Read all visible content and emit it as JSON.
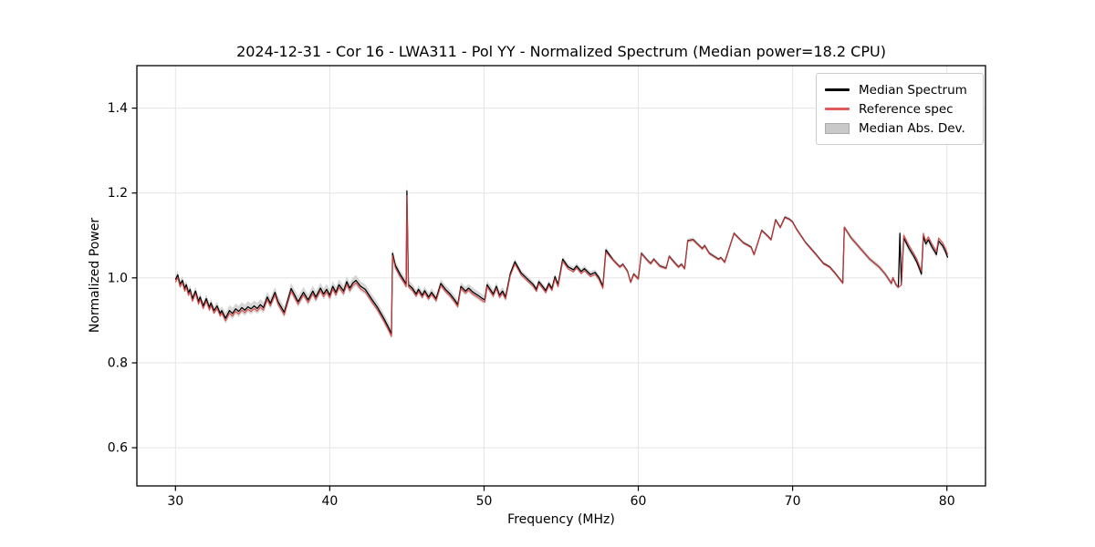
{
  "chart_data": {
    "type": "line",
    "title": "2024-12-31 - Cor 16 - LWA311 - Pol YY - Normalized Spectrum (Median power=18.2 CPU)",
    "xlabel": "Frequency (MHz)",
    "ylabel": "Normalized Power",
    "xlim": [
      27.5,
      82.5
    ],
    "ylim": [
      0.51,
      1.5
    ],
    "xticks": [
      30,
      40,
      50,
      60,
      70,
      80
    ],
    "yticks": [
      0.6,
      0.8,
      1.0,
      1.2,
      1.4
    ],
    "xtick_labels": [
      "30",
      "40",
      "50",
      "60",
      "70",
      "80"
    ],
    "ytick_labels": [
      "0.6",
      "0.8",
      "1.0",
      "1.2",
      "1.4"
    ],
    "grid": true,
    "grid_color": "#e5e5e5",
    "legend_position": "upper right",
    "x": [
      30.0,
      30.15,
      30.3,
      30.45,
      30.6,
      30.7,
      30.85,
      30.95,
      31.1,
      31.3,
      31.5,
      31.6,
      31.8,
      32.0,
      32.2,
      32.3,
      32.5,
      32.7,
      32.9,
      33.0,
      33.25,
      33.5,
      33.7,
      33.9,
      34.1,
      34.3,
      34.5,
      34.7,
      34.9,
      35.1,
      35.3,
      35.5,
      35.7,
      35.95,
      36.15,
      36.45,
      36.65,
      37.05,
      37.5,
      37.95,
      38.3,
      38.6,
      38.9,
      39.1,
      39.4,
      39.6,
      39.8,
      40.0,
      40.2,
      40.4,
      40.6,
      40.9,
      41.1,
      41.3,
      41.5,
      41.7,
      42.0,
      42.3,
      42.7,
      43.1,
      43.5,
      43.85,
      44.0,
      44.07,
      44.25,
      44.55,
      44.85,
      44.95,
      45.0,
      45.1,
      45.35,
      45.6,
      45.75,
      46.0,
      46.15,
      46.4,
      46.6,
      46.9,
      47.2,
      47.5,
      47.8,
      48.1,
      48.3,
      48.5,
      48.8,
      49.0,
      49.3,
      49.6,
      49.9,
      50.05,
      50.2,
      50.4,
      50.6,
      50.8,
      51.0,
      51.2,
      51.4,
      51.7,
      52.0,
      52.4,
      52.8,
      53.2,
      53.4,
      53.55,
      53.8,
      54.0,
      54.2,
      54.4,
      54.6,
      54.8,
      55.1,
      55.45,
      55.8,
      56.0,
      56.3,
      56.5,
      56.9,
      57.2,
      57.45,
      57.7,
      57.9,
      58.4,
      58.8,
      59.0,
      59.3,
      59.5,
      59.7,
      60.0,
      60.2,
      60.6,
      60.8,
      61.0,
      61.4,
      61.8,
      62.0,
      62.3,
      62.6,
      62.8,
      63.0,
      63.2,
      63.55,
      64.15,
      64.3,
      64.6,
      65.2,
      65.35,
      65.6,
      66.2,
      66.8,
      67.3,
      67.5,
      68.0,
      68.4,
      68.6,
      68.9,
      69.2,
      69.5,
      69.8,
      70.0,
      70.25,
      70.85,
      71.45,
      72.0,
      72.4,
      72.8,
      73.1,
      73.25,
      73.35,
      73.8,
      74.4,
      75.0,
      75.6,
      76.0,
      76.4,
      76.5,
      76.7,
      76.85,
      76.95,
      77.05,
      77.2,
      77.55,
      77.85,
      78.05,
      78.25,
      78.35,
      78.47,
      78.63,
      78.8,
      79.03,
      79.22,
      79.32,
      79.46,
      79.72,
      79.91,
      80.05
    ],
    "series": [
      {
        "name": "Median Spectrum",
        "color": "#000000",
        "values": [
          0.996,
          1.007,
          0.985,
          0.994,
          0.975,
          0.984,
          0.965,
          0.973,
          0.951,
          0.969,
          0.944,
          0.955,
          0.934,
          0.951,
          0.93,
          0.941,
          0.923,
          0.934,
          0.916,
          0.923,
          0.905,
          0.923,
          0.916,
          0.927,
          0.921,
          0.93,
          0.924,
          0.932,
          0.927,
          0.934,
          0.928,
          0.937,
          0.93,
          0.955,
          0.94,
          0.966,
          0.944,
          0.919,
          0.975,
          0.944,
          0.966,
          0.948,
          0.969,
          0.955,
          0.976,
          0.962,
          0.973,
          0.959,
          0.98,
          0.966,
          0.984,
          0.969,
          0.991,
          0.976,
          0.988,
          0.994,
          0.98,
          0.973,
          0.951,
          0.93,
          0.905,
          0.88,
          0.868,
          1.058,
          1.03,
          1.009,
          0.992,
          0.985,
          1.205,
          0.984,
          0.976,
          0.962,
          0.973,
          0.959,
          0.97,
          0.955,
          0.966,
          0.951,
          0.987,
          0.973,
          0.962,
          0.948,
          0.937,
          0.98,
          0.969,
          0.976,
          0.966,
          0.959,
          0.951,
          0.948,
          0.984,
          0.973,
          0.962,
          0.98,
          0.959,
          0.969,
          0.955,
          1.01,
          1.038,
          1.012,
          0.998,
          0.984,
          0.973,
          0.991,
          0.98,
          0.97,
          0.987,
          0.975,
          1.003,
          0.984,
          1.044,
          1.026,
          1.019,
          1.028,
          1.015,
          1.022,
          1.008,
          1.013,
          1.001,
          0.98,
          1.066,
          1.041,
          1.026,
          1.032,
          1.016,
          0.99,
          1.009,
          0.998,
          1.058,
          1.041,
          1.034,
          1.044,
          1.028,
          1.023,
          1.051,
          1.038,
          1.026,
          1.032,
          1.022,
          1.088,
          1.09,
          1.069,
          1.076,
          1.058,
          1.044,
          1.048,
          1.037,
          1.105,
          1.083,
          1.073,
          1.055,
          1.112,
          1.098,
          1.09,
          1.137,
          1.119,
          1.143,
          1.138,
          1.132,
          1.115,
          1.083,
          1.058,
          1.034,
          1.026,
          1.009,
          0.995,
          0.988,
          1.119,
          1.094,
          1.069,
          1.044,
          1.026,
          1.009,
          0.987,
          1.0,
          0.984,
          0.978,
          1.105,
          0.984,
          1.094,
          1.069,
          1.051,
          1.037,
          1.019,
          1.009,
          1.098,
          1.08,
          1.09,
          1.073,
          1.062,
          1.055,
          1.087,
          1.076,
          1.062,
          1.048
        ]
      },
      {
        "name": "Reference spec",
        "color": "#e05c5c",
        "values": [
          0.99,
          1.001,
          0.979,
          0.988,
          0.969,
          0.978,
          0.959,
          0.967,
          0.945,
          0.963,
          0.938,
          0.949,
          0.928,
          0.945,
          0.924,
          0.935,
          0.917,
          0.928,
          0.91,
          0.917,
          0.899,
          0.917,
          0.91,
          0.921,
          0.915,
          0.924,
          0.918,
          0.926,
          0.921,
          0.928,
          0.922,
          0.931,
          0.924,
          0.949,
          0.934,
          0.96,
          0.938,
          0.913,
          0.969,
          0.938,
          0.96,
          0.942,
          0.963,
          0.949,
          0.97,
          0.956,
          0.967,
          0.953,
          0.974,
          0.96,
          0.978,
          0.963,
          0.985,
          0.97,
          0.982,
          0.988,
          0.974,
          0.967,
          0.945,
          0.924,
          0.899,
          0.874,
          0.862,
          1.052,
          1.024,
          1.003,
          0.986,
          0.979,
          1.193,
          0.979,
          0.971,
          0.957,
          0.968,
          0.954,
          0.965,
          0.95,
          0.961,
          0.946,
          0.982,
          0.968,
          0.957,
          0.943,
          0.932,
          0.975,
          0.964,
          0.971,
          0.961,
          0.954,
          0.946,
          0.943,
          0.979,
          0.968,
          0.957,
          0.975,
          0.954,
          0.964,
          0.95,
          1.005,
          1.033,
          1.007,
          0.993,
          0.979,
          0.968,
          0.986,
          0.975,
          0.965,
          0.982,
          0.97,
          0.998,
          0.979,
          1.039,
          1.021,
          1.014,
          1.023,
          1.01,
          1.017,
          1.003,
          1.008,
          0.996,
          0.975,
          1.061,
          1.04,
          1.025,
          1.031,
          1.015,
          0.989,
          1.008,
          0.997,
          1.057,
          1.04,
          1.033,
          1.043,
          1.027,
          1.022,
          1.05,
          1.037,
          1.025,
          1.031,
          1.021,
          1.087,
          1.089,
          1.068,
          1.075,
          1.057,
          1.043,
          1.047,
          1.036,
          1.104,
          1.082,
          1.072,
          1.054,
          1.111,
          1.097,
          1.089,
          1.136,
          1.118,
          1.142,
          1.137,
          1.131,
          1.114,
          1.082,
          1.057,
          1.033,
          1.025,
          1.008,
          0.994,
          0.987,
          1.119,
          1.094,
          1.069,
          1.044,
          1.026,
          1.009,
          0.987,
          1.0,
          0.984,
          0.978,
          0.98,
          0.984,
          1.101,
          1.076,
          1.058,
          1.044,
          1.026,
          1.016,
          1.105,
          1.087,
          1.097,
          1.08,
          1.069,
          1.062,
          1.094,
          1.083,
          1.069,
          1.055
        ]
      }
    ],
    "band": {
      "name": "Median Abs. Dev.",
      "color": "#c9c9c9",
      "around_series": "Median Spectrum",
      "half_width_steps": [
        [
          27.5,
          0.01
        ],
        [
          33.2,
          0.013
        ],
        [
          42.0,
          0.012
        ],
        [
          43.95,
          0.01
        ],
        [
          44.97,
          0.028
        ],
        [
          45.05,
          0.01
        ],
        [
          51.6,
          0.007
        ],
        [
          58.2,
          0.005
        ],
        [
          65.0,
          0.004
        ],
        [
          73.3,
          0.006
        ],
        [
          76.9,
          0.025
        ],
        [
          77.02,
          0.008
        ]
      ]
    }
  },
  "legend": {
    "items": [
      {
        "label": "Median Spectrum",
        "type": "line",
        "color": "#000000"
      },
      {
        "label": "Reference spec",
        "type": "line",
        "color": "#e05c5c"
      },
      {
        "label": "Median Abs. Dev.",
        "type": "patch",
        "color": "#c9c9c9"
      }
    ]
  },
  "colors": {
    "median_line": "#000000",
    "reference_line": "#d94040",
    "mad_band": "#c9c9c9",
    "grid": "#e5e5e5",
    "axis": "#000000",
    "background": "#ffffff"
  }
}
